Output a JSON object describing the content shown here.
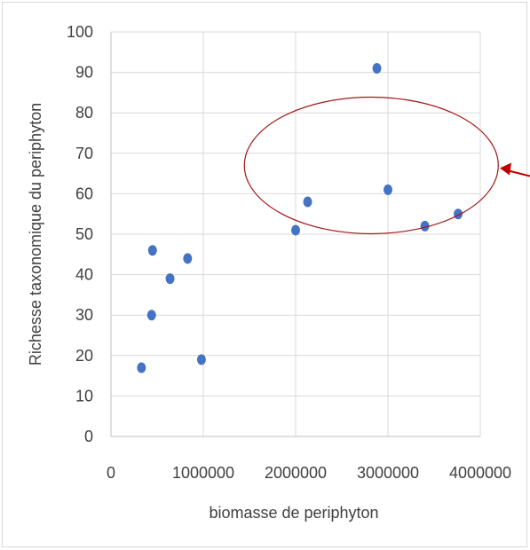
{
  "chart_data": {
    "type": "scatter",
    "xlabel": "biomasse de periphyton",
    "ylabel": "Richesse taxonomique du periphyton",
    "xlim": [
      0,
      4000000
    ],
    "ylim": [
      0,
      100
    ],
    "x_ticks": [
      0,
      1000000,
      2000000,
      3000000,
      4000000
    ],
    "x_tick_labels": [
      "0",
      "1000000",
      "2000000",
      "3000000",
      "4000000"
    ],
    "y_ticks": [
      0,
      10,
      20,
      30,
      40,
      50,
      60,
      70,
      80,
      90,
      100
    ],
    "y_tick_labels": [
      "0",
      "10",
      "20",
      "30",
      "40",
      "50",
      "60",
      "70",
      "80",
      "90",
      "100"
    ],
    "grid": true,
    "series": [
      {
        "color": "#4472c4",
        "points": [
          {
            "x": 330000,
            "y": 17
          },
          {
            "x": 440000,
            "y": 30
          },
          {
            "x": 450000,
            "y": 46
          },
          {
            "x": 640000,
            "y": 39
          },
          {
            "x": 830000,
            "y": 44
          },
          {
            "x": 980000,
            "y": 19
          },
          {
            "x": 2000000,
            "y": 51
          },
          {
            "x": 2130000,
            "y": 58
          },
          {
            "x": 2880000,
            "y": 91
          },
          {
            "x": 3000000,
            "y": 61
          },
          {
            "x": 3400000,
            "y": 52
          },
          {
            "x": 3760000,
            "y": 55
          }
        ]
      }
    ],
    "annotations": [
      {
        "type": "ellipse",
        "color": "#a31515",
        "center": {
          "x": 2820000,
          "y": 67
        },
        "rx": 2650000,
        "ry": 32
      },
      {
        "type": "arrow",
        "color": "#c00000",
        "tip": {
          "x": 4250000,
          "y": 67
        }
      }
    ]
  }
}
